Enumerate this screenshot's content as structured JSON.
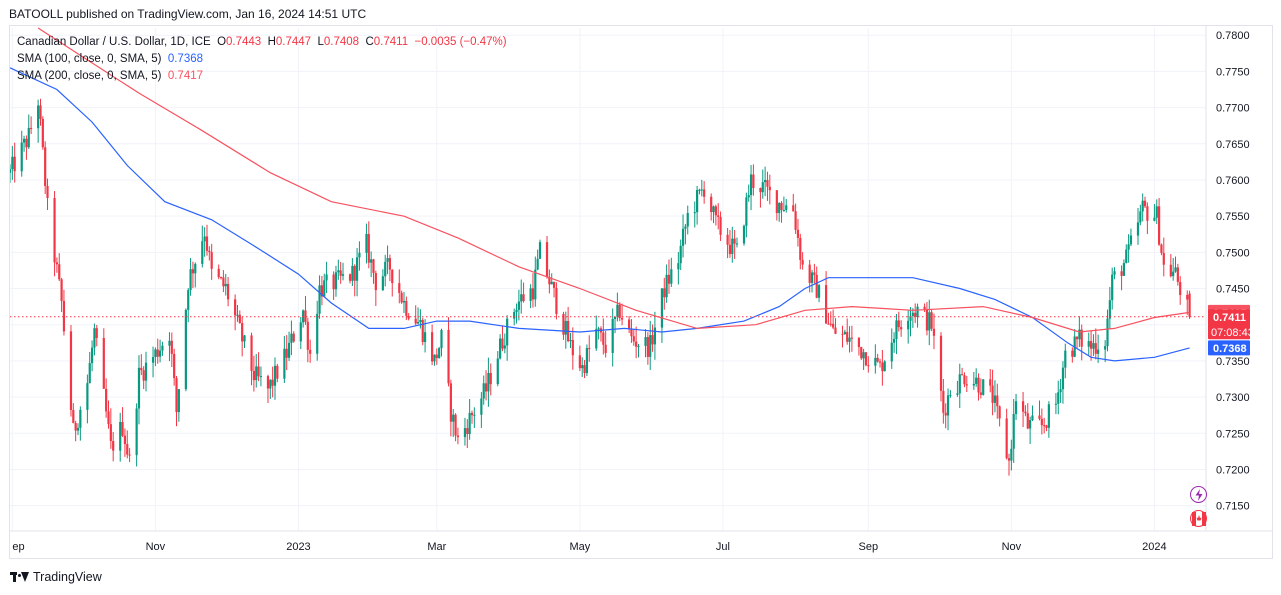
{
  "publisher": "BATOOLL published on TradingView.com, Jan 16, 2024 14:51 UTC",
  "footer_brand": "TradingView",
  "legend": {
    "symbol": "Canadian Dollar / U.S. Dollar, 1D, ICE",
    "o_label": "O",
    "o_value": "0.7443",
    "h_label": "H",
    "h_value": "0.7447",
    "l_label": "L",
    "l_value": "0.7408",
    "c_label": "C",
    "c_value": "0.7411",
    "change": "−0.0035 (−0.47%)",
    "sma100_label": "SMA (100, close, 0, SMA, 5)",
    "sma100_value": "0.7368",
    "sma200_label": "SMA (200, close, 0, SMA, 5)",
    "sma200_value": "0.7417"
  },
  "badges": {
    "sma200": "0.7417",
    "price": "0.7411",
    "countdown": "07:08:43",
    "sma100": "0.7368"
  },
  "colors": {
    "up": "#089981",
    "down": "#f23645",
    "sma100": "#2962ff",
    "sma200": "#f7525f",
    "grid": "#f0f3fa",
    "axis_text": "#131722"
  },
  "icons": [
    "lightning-icon",
    "canada-flag-icon"
  ],
  "chart_data": {
    "type": "candlestick",
    "title": "Canadian Dollar / U.S. Dollar, 1D, ICE",
    "y_ticks": [
      "0.7800",
      "0.7750",
      "0.7700",
      "0.7650",
      "0.7600",
      "0.7550",
      "0.7500",
      "0.7450",
      "0.7400",
      "0.7350",
      "0.7300",
      "0.7250",
      "0.7200",
      "0.7150"
    ],
    "x_ticks": [
      {
        "label": "ep",
        "date": "2022-09-01"
      },
      {
        "label": "Nov",
        "date": "2022-11-01"
      },
      {
        "label": "2023",
        "date": "2023-01-01"
      },
      {
        "label": "Mar",
        "date": "2023-03-01"
      },
      {
        "label": "May",
        "date": "2023-05-01"
      },
      {
        "label": "Jul",
        "date": "2023-07-01"
      },
      {
        "label": "Sep",
        "date": "2023-09-01"
      },
      {
        "label": "Nov",
        "date": "2023-11-01"
      },
      {
        "label": "2024",
        "date": "2024-01-01"
      }
    ],
    "ylim": [
      0.7115,
      0.781
    ],
    "xlim": [
      "2022-08-31",
      "2024-01-23"
    ],
    "grid": true,
    "close_path": [
      [
        "2022-08-31",
        0.761
      ],
      [
        "2022-09-08",
        0.766
      ],
      [
        "2022-09-12",
        0.771
      ],
      [
        "2022-09-16",
        0.756
      ],
      [
        "2022-09-22",
        0.743
      ],
      [
        "2022-09-27",
        0.725
      ],
      [
        "2022-10-03",
        0.732
      ],
      [
        "2022-10-06",
        0.739
      ],
      [
        "2022-10-13",
        0.723
      ],
      [
        "2022-10-18",
        0.726
      ],
      [
        "2022-10-21",
        0.721
      ],
      [
        "2022-10-25",
        0.733
      ],
      [
        "2022-11-01",
        0.736
      ],
      [
        "2022-11-07",
        0.739
      ],
      [
        "2022-11-10",
        0.728
      ],
      [
        "2022-11-15",
        0.746
      ],
      [
        "2022-11-22",
        0.753
      ],
      [
        "2022-11-25",
        0.747
      ],
      [
        "2022-12-01",
        0.745
      ],
      [
        "2022-12-07",
        0.739
      ],
      [
        "2022-12-13",
        0.733
      ],
      [
        "2022-12-19",
        0.731
      ],
      [
        "2022-12-27",
        0.736
      ],
      [
        "2023-01-03",
        0.742
      ],
      [
        "2023-01-06",
        0.736
      ],
      [
        "2023-01-10",
        0.745
      ],
      [
        "2023-01-18",
        0.746
      ],
      [
        "2023-01-24",
        0.747
      ],
      [
        "2023-01-30",
        0.751
      ],
      [
        "2023-02-03",
        0.746
      ],
      [
        "2023-02-09",
        0.748
      ],
      [
        "2023-02-15",
        0.743
      ],
      [
        "2023-02-22",
        0.74
      ],
      [
        "2023-02-28",
        0.735
      ],
      [
        "2023-03-03",
        0.738
      ],
      [
        "2023-03-07",
        0.728
      ],
      [
        "2023-03-10",
        0.724
      ],
      [
        "2023-03-15",
        0.727
      ],
      [
        "2023-03-22",
        0.731
      ],
      [
        "2023-03-28",
        0.737
      ],
      [
        "2023-04-04",
        0.743
      ],
      [
        "2023-04-11",
        0.745
      ],
      [
        "2023-04-14",
        0.75
      ],
      [
        "2023-04-20",
        0.744
      ],
      [
        "2023-04-27",
        0.737
      ],
      [
        "2023-05-02",
        0.734
      ],
      [
        "2023-05-08",
        0.739
      ],
      [
        "2023-05-12",
        0.737
      ],
      [
        "2023-05-18",
        0.742
      ],
      [
        "2023-05-23",
        0.738
      ],
      [
        "2023-05-31",
        0.737
      ],
      [
        "2023-06-06",
        0.745
      ],
      [
        "2023-06-12",
        0.749
      ],
      [
        "2023-06-16",
        0.755
      ],
      [
        "2023-06-23",
        0.759
      ],
      [
        "2023-06-28",
        0.754
      ],
      [
        "2023-07-04",
        0.751
      ],
      [
        "2023-07-07",
        0.75
      ],
      [
        "2023-07-13",
        0.76
      ],
      [
        "2023-07-18",
        0.759
      ],
      [
        "2023-07-24",
        0.757
      ],
      [
        "2023-07-31",
        0.756
      ],
      [
        "2023-08-04",
        0.748
      ],
      [
        "2023-08-10",
        0.745
      ],
      [
        "2023-08-17",
        0.739
      ],
      [
        "2023-08-24",
        0.738
      ],
      [
        "2023-08-31",
        0.736
      ],
      [
        "2023-09-06",
        0.734
      ],
      [
        "2023-09-12",
        0.739
      ],
      [
        "2023-09-18",
        0.742
      ],
      [
        "2023-09-22",
        0.742
      ],
      [
        "2023-09-28",
        0.74
      ],
      [
        "2023-10-03",
        0.728
      ],
      [
        "2023-10-06",
        0.731
      ],
      [
        "2023-10-12",
        0.733
      ],
      [
        "2023-10-18",
        0.732
      ],
      [
        "2023-10-24",
        0.73
      ],
      [
        "2023-10-31",
        0.721
      ],
      [
        "2023-11-03",
        0.73
      ],
      [
        "2023-11-08",
        0.726
      ],
      [
        "2023-11-14",
        0.726
      ],
      [
        "2023-11-20",
        0.729
      ],
      [
        "2023-11-24",
        0.736
      ],
      [
        "2023-11-30",
        0.738
      ],
      [
        "2023-12-05",
        0.737
      ],
      [
        "2023-12-11",
        0.738
      ],
      [
        "2023-12-14",
        0.746
      ],
      [
        "2023-12-20",
        0.749
      ],
      [
        "2023-12-27",
        0.756
      ],
      [
        "2024-01-02",
        0.755
      ],
      [
        "2024-01-05",
        0.748
      ],
      [
        "2024-01-10",
        0.747
      ],
      [
        "2024-01-12",
        0.745
      ],
      [
        "2024-01-16",
        0.7411
      ]
    ],
    "series": [
      {
        "name": "SMA (100, close, 0, SMA, 5)",
        "color": "#2962ff",
        "points": [
          [
            "2022-08-31",
            0.7755
          ],
          [
            "2022-09-20",
            0.7725
          ],
          [
            "2022-10-05",
            0.768
          ],
          [
            "2022-10-20",
            0.762
          ],
          [
            "2022-11-05",
            0.757
          ],
          [
            "2022-11-25",
            0.7545
          ],
          [
            "2022-12-15",
            0.7505
          ],
          [
            "2023-01-01",
            0.747
          ],
          [
            "2023-01-15",
            0.743
          ],
          [
            "2023-01-31",
            0.7395
          ],
          [
            "2023-02-15",
            0.7395
          ],
          [
            "2023-03-01",
            0.7405
          ],
          [
            "2023-03-15",
            0.7405
          ],
          [
            "2023-04-05",
            0.7395
          ],
          [
            "2023-05-01",
            0.739
          ],
          [
            "2023-05-20",
            0.7395
          ],
          [
            "2023-06-05",
            0.739
          ],
          [
            "2023-06-20",
            0.7395
          ],
          [
            "2023-07-10",
            0.7405
          ],
          [
            "2023-07-25",
            0.7425
          ],
          [
            "2023-08-05",
            0.745
          ],
          [
            "2023-08-15",
            0.7465
          ],
          [
            "2023-09-01",
            0.7465
          ],
          [
            "2023-09-20",
            0.7465
          ],
          [
            "2023-10-10",
            0.745
          ],
          [
            "2023-10-25",
            0.7435
          ],
          [
            "2023-11-10",
            0.741
          ],
          [
            "2023-11-25",
            0.7375
          ],
          [
            "2023-12-05",
            0.7355
          ],
          [
            "2023-12-15",
            0.735
          ],
          [
            "2024-01-01",
            0.7355
          ],
          [
            "2024-01-16",
            0.7368
          ]
        ]
      },
      {
        "name": "SMA (200, close, 0, SMA, 5)",
        "color": "#f7525f",
        "points": [
          [
            "2022-09-12",
            0.781
          ],
          [
            "2022-10-01",
            0.777
          ],
          [
            "2022-10-25",
            0.772
          ],
          [
            "2022-11-20",
            0.767
          ],
          [
            "2022-12-20",
            0.761
          ],
          [
            "2023-01-15",
            0.757
          ],
          [
            "2023-02-15",
            0.755
          ],
          [
            "2023-03-10",
            0.752
          ],
          [
            "2023-04-05",
            0.748
          ],
          [
            "2023-05-01",
            0.745
          ],
          [
            "2023-05-25",
            0.742
          ],
          [
            "2023-06-20",
            0.7395
          ],
          [
            "2023-07-15",
            0.74
          ],
          [
            "2023-08-05",
            0.742
          ],
          [
            "2023-08-25",
            0.7425
          ],
          [
            "2023-09-20",
            0.742
          ],
          [
            "2023-10-20",
            0.7425
          ],
          [
            "2023-11-10",
            0.741
          ],
          [
            "2023-11-30",
            0.739
          ],
          [
            "2023-12-15",
            0.7395
          ],
          [
            "2024-01-01",
            0.741
          ],
          [
            "2024-01-16",
            0.7417
          ]
        ]
      }
    ]
  }
}
